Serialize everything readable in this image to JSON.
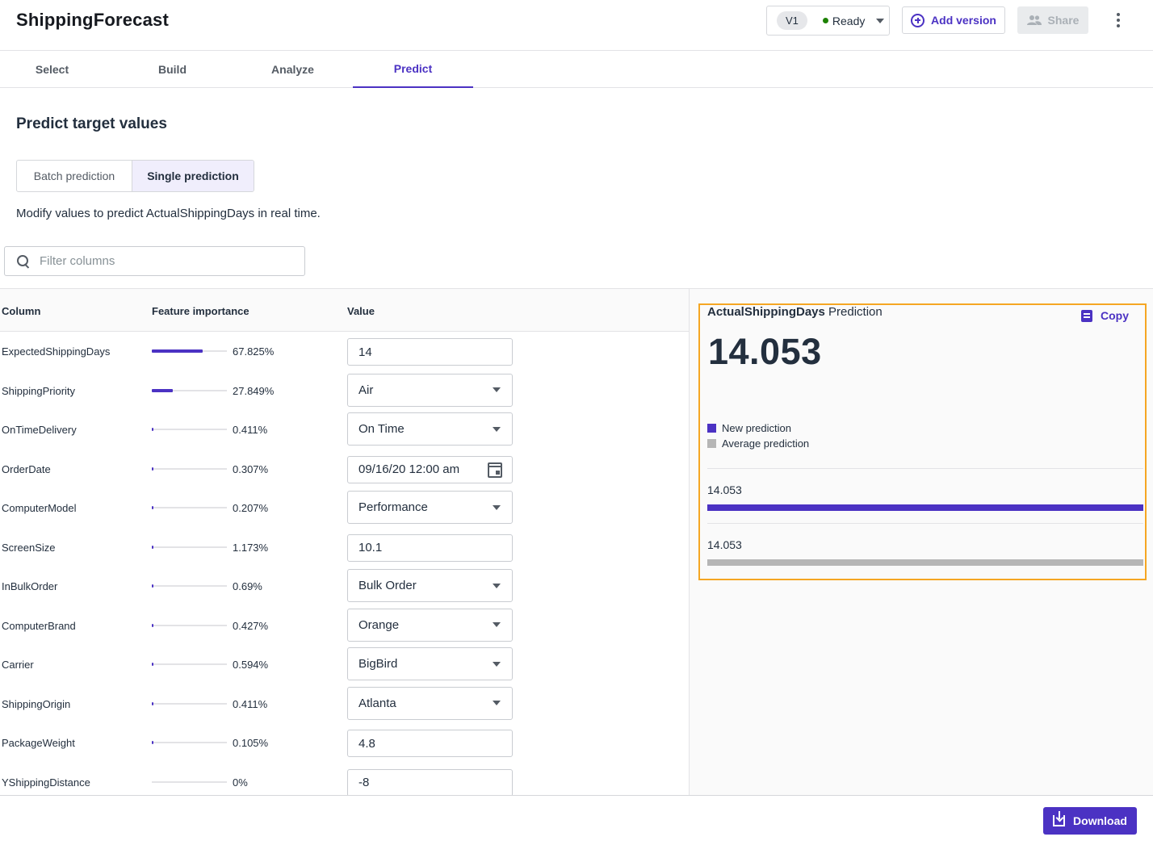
{
  "app": {
    "title": "ShippingForecast"
  },
  "header": {
    "version": "V1",
    "status": "Ready",
    "add_version_label": "Add version",
    "share_label": "Share"
  },
  "tabs": [
    {
      "label": "Select",
      "active": false
    },
    {
      "label": "Build",
      "active": false
    },
    {
      "label": "Analyze",
      "active": false
    },
    {
      "label": "Predict",
      "active": true
    }
  ],
  "main": {
    "title": "Predict target values",
    "modes": {
      "batch": "Batch prediction",
      "single": "Single prediction",
      "selected": "single"
    },
    "description": "Modify values to predict ActualShippingDays in real time.",
    "filter_placeholder": "Filter columns"
  },
  "table": {
    "headers": {
      "column": "Column",
      "importance": "Feature importance",
      "value": "Value"
    },
    "rows": [
      {
        "column": "ExpectedShippingDays",
        "importance": 67.825,
        "importance_label": "67.825%",
        "value": "14",
        "type": "input"
      },
      {
        "column": "ShippingPriority",
        "importance": 27.849,
        "importance_label": "27.849%",
        "value": "Air",
        "type": "select"
      },
      {
        "column": "OnTimeDelivery",
        "importance": 0.411,
        "importance_label": "0.411%",
        "value": "On Time",
        "type": "select"
      },
      {
        "column": "OrderDate",
        "importance": 0.307,
        "importance_label": "0.307%",
        "value": "09/16/20 12:00 am",
        "type": "date"
      },
      {
        "column": "ComputerModel",
        "importance": 0.207,
        "importance_label": "0.207%",
        "value": "Performance",
        "type": "select"
      },
      {
        "column": "ScreenSize",
        "importance": 1.173,
        "importance_label": "1.173%",
        "value": "10.1",
        "type": "input"
      },
      {
        "column": "InBulkOrder",
        "importance": 0.69,
        "importance_label": "0.69%",
        "value": "Bulk Order",
        "type": "select"
      },
      {
        "column": "ComputerBrand",
        "importance": 0.427,
        "importance_label": "0.427%",
        "value": "Orange",
        "type": "select"
      },
      {
        "column": "Carrier",
        "importance": 0.594,
        "importance_label": "0.594%",
        "value": "BigBird",
        "type": "select"
      },
      {
        "column": "ShippingOrigin",
        "importance": 0.411,
        "importance_label": "0.411%",
        "value": "Atlanta",
        "type": "select"
      },
      {
        "column": "PackageWeight",
        "importance": 0.105,
        "importance_label": "0.105%",
        "value": "4.8",
        "type": "input"
      },
      {
        "column": "YShippingDistance",
        "importance": 0,
        "importance_label": "0%",
        "value": "-8",
        "type": "input"
      }
    ]
  },
  "prediction": {
    "target": "ActualShippingDays",
    "suffix": "Prediction",
    "copy_label": "Copy",
    "value": "14.053",
    "legend": {
      "new": "New prediction",
      "average": "Average prediction"
    },
    "new_value": "14.053",
    "average_value": "14.053",
    "new_fill": 1.0,
    "average_fill": 1.0,
    "colors": {
      "new": "#4b32c3",
      "average": "#b6b6b6",
      "highlight": "#f5a623"
    }
  },
  "footer": {
    "download_label": "Download"
  }
}
